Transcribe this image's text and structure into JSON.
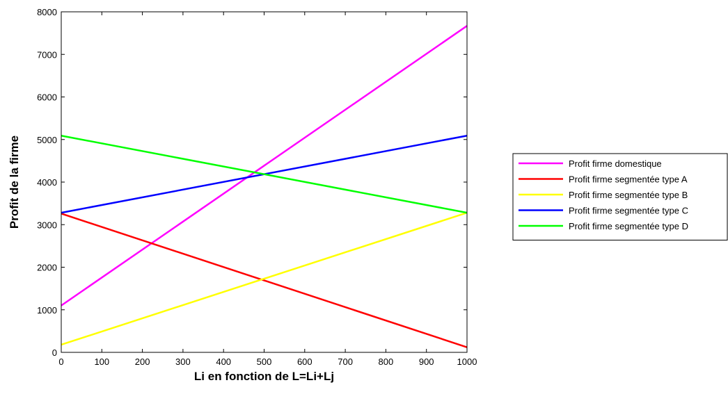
{
  "chart_data": {
    "type": "line",
    "title": "",
    "xlabel": "Li en fonction de L=Li+Lj",
    "ylabel": "Profit de la firme",
    "xlim": [
      0,
      1000
    ],
    "ylim": [
      0,
      8000
    ],
    "xticks": [
      0,
      100,
      200,
      300,
      400,
      500,
      600,
      700,
      800,
      900,
      1000
    ],
    "yticks": [
      0,
      1000,
      2000,
      3000,
      4000,
      5000,
      6000,
      7000,
      8000
    ],
    "grid": false,
    "legend_position": "outside-right",
    "series": [
      {
        "name": "Profit firme domestique",
        "color": "#ff00ff",
        "x": [
          0,
          1000
        ],
        "y": [
          1100,
          7670
        ]
      },
      {
        "name": "Profit firme segmentée type A",
        "color": "#ff0000",
        "x": [
          0,
          1000
        ],
        "y": [
          3260,
          120
        ]
      },
      {
        "name": "Profit firme segmentée type B",
        "color": "#ffff00",
        "x": [
          0,
          1000
        ],
        "y": [
          180,
          3280
        ]
      },
      {
        "name": "Profit firme segmentée type C",
        "color": "#0000ff",
        "x": [
          0,
          1000
        ],
        "y": [
          3280,
          5090
        ]
      },
      {
        "name": "Profit firme segmentée type D",
        "color": "#00ff00",
        "x": [
          0,
          1000
        ],
        "y": [
          5090,
          3280
        ]
      }
    ]
  }
}
